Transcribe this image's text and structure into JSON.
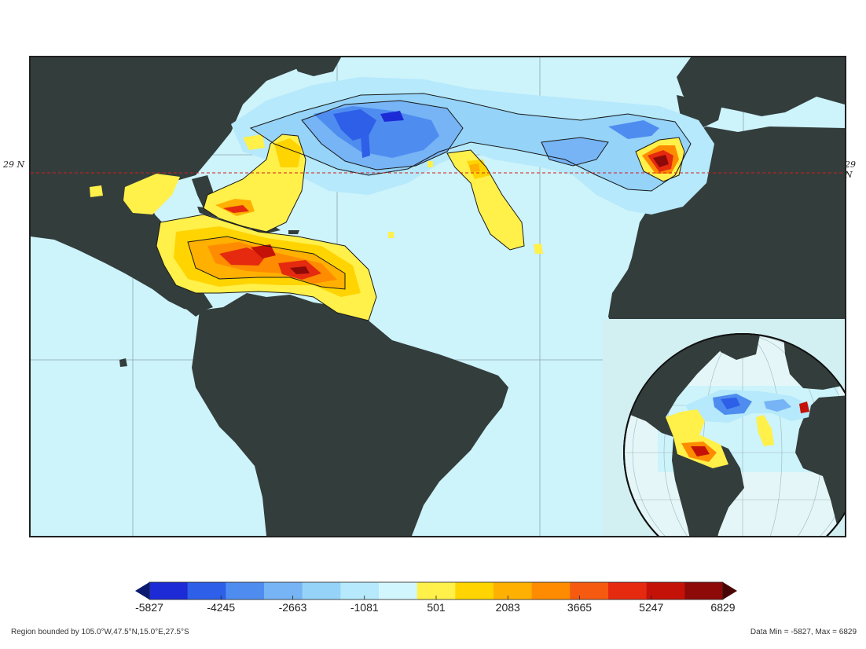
{
  "map": {
    "reference_latitude_label": "29 N",
    "ocean_color": "#cdf3fb",
    "land_color": "#333d3b",
    "grid_color": "#8aa7ad"
  },
  "colorbar": {
    "colors": [
      "#1c2bd6",
      "#2d5fe8",
      "#4f8cf0",
      "#76b4f5",
      "#95d3f8",
      "#b5e9fb",
      "#d2f6fd",
      "#fff04a",
      "#ffd400",
      "#ffb000",
      "#ff8c00",
      "#f55a10",
      "#e52a10",
      "#c41208",
      "#8e0a08"
    ],
    "under_color": "#0a1a70",
    "over_color": "#4a0505",
    "tick_labels": [
      "-5827",
      "-4245",
      "-2663",
      "-1081",
      "501",
      "2083",
      "3665",
      "5247",
      "6829"
    ]
  },
  "footer": {
    "region": "Region bounded by 105.0°W,47.5°N,15.0°E,27.5°S",
    "data_range": "Data Min = -5827, Max = 6829"
  }
}
